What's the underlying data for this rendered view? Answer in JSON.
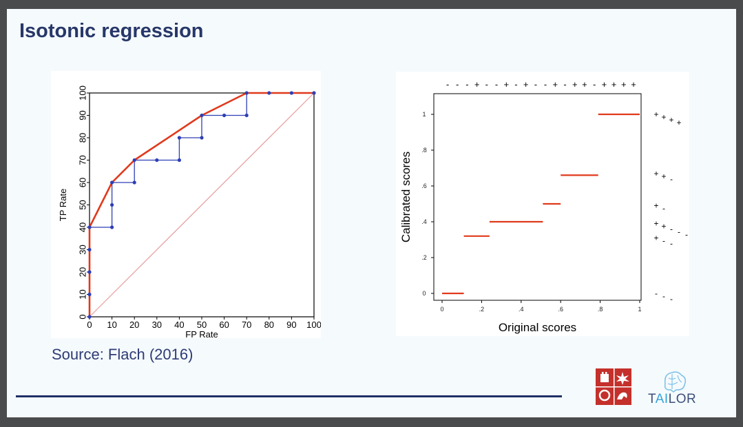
{
  "slide": {
    "title": "Isotonic regression",
    "source": "Source: Flach (2016)",
    "logos": {
      "institution": "shield-logo",
      "tailor": {
        "pre": "T",
        "ai": "AI",
        "post": "LOR"
      }
    },
    "colors": {
      "title": "#273769",
      "source": "#2e3c75",
      "rule": "#1e2f66",
      "step": "#2e3fb5",
      "hull": "#e0391b",
      "diagonal": "#e89a9a"
    }
  },
  "chart_data": [
    {
      "type": "line",
      "xlabel": "FP Rate",
      "ylabel": "TP Rate",
      "xlim": [
        0,
        100
      ],
      "ylim": [
        0,
        100
      ],
      "xticks": [
        0,
        10,
        20,
        30,
        40,
        50,
        60,
        70,
        80,
        90,
        100
      ],
      "yticks": [
        0,
        10,
        20,
        30,
        40,
        50,
        60,
        70,
        80,
        90,
        100
      ],
      "series": [
        {
          "style": "step-with-points",
          "color": "#2e3fb5",
          "x": [
            0,
            0,
            0,
            0,
            0,
            10,
            10,
            10,
            20,
            20,
            30,
            40,
            40,
            50,
            50,
            60,
            70,
            70,
            80,
            90,
            100
          ],
          "y": [
            0,
            10,
            20,
            30,
            40,
            40,
            50,
            60,
            60,
            70,
            70,
            70,
            80,
            80,
            90,
            90,
            90,
            100,
            100,
            100,
            100
          ]
        },
        {
          "style": "convex-hull",
          "color": "#e0391b",
          "x": [
            0,
            0,
            10,
            20,
            50,
            70,
            100
          ],
          "y": [
            0,
            40,
            60,
            70,
            90,
            100,
            100
          ]
        },
        {
          "style": "diagonal",
          "color": "#e89a9a",
          "x": [
            0,
            100
          ],
          "y": [
            0,
            100
          ]
        }
      ]
    },
    {
      "type": "step",
      "xlabel": "Original scores",
      "ylabel": "Calibrated scores",
      "xlim": [
        0,
        1
      ],
      "ylim": [
        0,
        1
      ],
      "xtick_labels": [
        "0",
        ".2",
        ".4",
        ".6",
        ".8",
        "1"
      ],
      "ytick_labels": [
        "0",
        ".2",
        ".4",
        ".6",
        ".8",
        "1"
      ],
      "xtick_values": [
        0,
        0.2,
        0.4,
        0.6,
        0.8,
        1
      ],
      "ytick_values": [
        0,
        0.2,
        0.4,
        0.6,
        0.8,
        1
      ],
      "segments": [
        {
          "x0": 0.0,
          "x1": 0.11,
          "y": 0.0
        },
        {
          "x0": 0.11,
          "x1": 0.24,
          "y": 0.32
        },
        {
          "x0": 0.24,
          "x1": 0.51,
          "y": 0.4
        },
        {
          "x0": 0.51,
          "x1": 0.6,
          "y": 0.5
        },
        {
          "x0": 0.6,
          "x1": 0.79,
          "y": 0.66
        },
        {
          "x0": 0.79,
          "x1": 1.0,
          "y": 1.0
        }
      ],
      "top_marks": [
        "-",
        "-",
        "-",
        "+",
        "-",
        "-",
        "+",
        "-",
        "+",
        "-",
        "-",
        "+",
        "-",
        "+",
        "+",
        "-",
        "+",
        "+",
        "+",
        "+"
      ],
      "right_marks": [
        {
          "y": 1.0,
          "marks": [
            "+",
            "+",
            "+",
            "+"
          ]
        },
        {
          "y": 0.67,
          "marks": [
            "+",
            "+",
            "-"
          ]
        },
        {
          "y": 0.49,
          "marks": [
            "+",
            "-"
          ]
        },
        {
          "y": 0.39,
          "marks": [
            "+",
            "+",
            "-",
            "-",
            "-"
          ]
        },
        {
          "y": 0.31,
          "marks": [
            "+",
            "-",
            "-"
          ]
        },
        {
          "y": 0.0,
          "marks": [
            "-",
            "-",
            "-"
          ]
        }
      ],
      "line_color": "#e0391b"
    }
  ]
}
